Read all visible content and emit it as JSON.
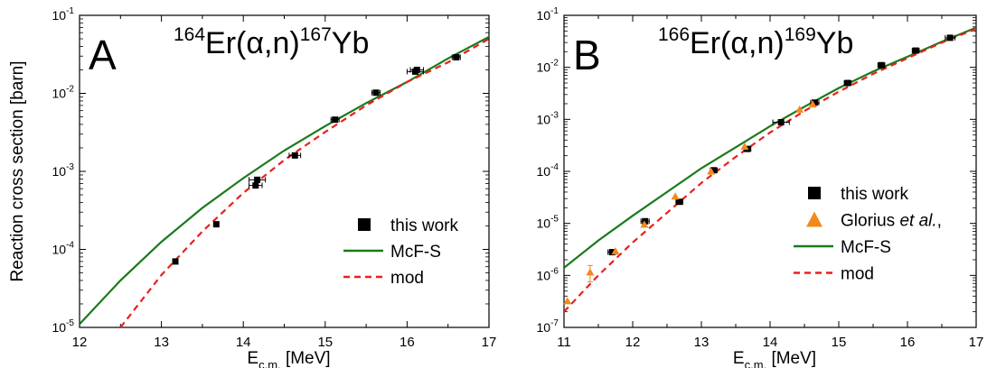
{
  "figure": {
    "ylabel": "Reaction cross section [barn]"
  },
  "chart_data": [
    {
      "type": "scatter",
      "panel_letter": "A",
      "reaction": {
        "target_mass": "164",
        "target": "Er",
        "projectile": "α",
        "ejectile": "n",
        "product_mass": "167",
        "product": "Yb"
      },
      "xlabel_main": "E",
      "xlabel_sub": "c.m.",
      "xlabel_unit": "[MeV]",
      "xlim": [
        12,
        17
      ],
      "ylim": [
        1e-05,
        0.1
      ],
      "yscale": "log",
      "xticks": [
        "12",
        "13",
        "14",
        "15",
        "16",
        "17"
      ],
      "yticks": [
        {
          "base": "10",
          "exp": "-5",
          "value": 1e-05
        },
        {
          "base": "10",
          "exp": "-4",
          "value": 0.0001
        },
        {
          "base": "10",
          "exp": "-3",
          "value": 0.001
        },
        {
          "base": "10",
          "exp": "-2",
          "value": 0.01
        },
        {
          "base": "10",
          "exp": "-1",
          "value": 0.1
        }
      ],
      "legend_position": "bottom-right",
      "series": [
        {
          "name": "this work",
          "kind": "points",
          "marker": "square",
          "color": "#000000",
          "x": [
            13.17,
            13.67,
            14.15,
            14.17,
            14.63,
            15.12,
            15.62,
            16.1,
            16.12,
            16.6
          ],
          "y": [
            7e-05,
            0.00021,
            0.00066,
            0.00078,
            0.0016,
            0.0046,
            0.0102,
            0.019,
            0.02,
            0.029
          ],
          "xerr": [
            0.03,
            0.03,
            0.08,
            0.1,
            0.07,
            0.05,
            0.05,
            0.1,
            0.08,
            0.05
          ]
        },
        {
          "name": "McF-S",
          "kind": "line",
          "style": "solid",
          "color": "#1a7a1a",
          "x": [
            12.0,
            12.5,
            13.0,
            13.5,
            14.0,
            14.5,
            15.0,
            15.5,
            16.0,
            16.5,
            17.0
          ],
          "y": [
            1.1e-05,
            4e-05,
            0.000125,
            0.00034,
            0.00082,
            0.00185,
            0.0038,
            0.0075,
            0.014,
            0.028,
            0.053
          ]
        },
        {
          "name": "mod",
          "kind": "line",
          "style": "dashed",
          "color": "#e8201e",
          "x": [
            12.5,
            13.0,
            13.5,
            14.0,
            14.5,
            15.0,
            15.5,
            16.0,
            16.5,
            17.0
          ],
          "y": [
            1e-05,
            4.7e-05,
            0.00017,
            0.00053,
            0.0014,
            0.0032,
            0.007,
            0.014,
            0.025,
            0.05
          ]
        }
      ]
    },
    {
      "type": "scatter",
      "panel_letter": "B",
      "reaction": {
        "target_mass": "166",
        "target": "Er",
        "projectile": "α",
        "ejectile": "n",
        "product_mass": "169",
        "product": "Yb"
      },
      "xlabel_main": "E",
      "xlabel_sub": "c.m.",
      "xlabel_unit": "[MeV]",
      "xlim": [
        11,
        17
      ],
      "ylim": [
        1e-07,
        0.1
      ],
      "yscale": "log",
      "xticks": [
        "11",
        "12",
        "13",
        "14",
        "15",
        "16",
        "17"
      ],
      "yticks": [
        {
          "base": "10",
          "exp": "-7",
          "value": 1e-07
        },
        {
          "base": "10",
          "exp": "-6",
          "value": 1e-06
        },
        {
          "base": "10",
          "exp": "-5",
          "value": 1e-05
        },
        {
          "base": "10",
          "exp": "-4",
          "value": 0.0001
        },
        {
          "base": "10",
          "exp": "-3",
          "value": 0.001
        },
        {
          "base": "10",
          "exp": "-2",
          "value": 0.01
        },
        {
          "base": "10",
          "exp": "-1",
          "value": 0.1
        }
      ],
      "legend_position": "right",
      "series": [
        {
          "name": "this work",
          "kind": "points",
          "marker": "square",
          "color": "#000000",
          "x": [
            11.7,
            12.18,
            12.68,
            13.18,
            13.67,
            14.16,
            14.65,
            15.13,
            15.62,
            16.12,
            16.62
          ],
          "y": [
            2.8e-06,
            1.1e-05,
            2.6e-05,
            0.000105,
            0.00027,
            0.00088,
            0.0021,
            0.005,
            0.011,
            0.021,
            0.037
          ],
          "xerr": [
            0.06,
            0.06,
            0.05,
            0.05,
            0.05,
            0.12,
            0.06,
            0.05,
            0.05,
            0.05,
            0.07
          ]
        },
        {
          "name": "Glorius et al.,",
          "kind": "points",
          "marker": "triangle",
          "color": "#f08a1c",
          "x": [
            11.05,
            11.38,
            11.75,
            12.17,
            12.62,
            13.14,
            13.63,
            14.43,
            14.62
          ],
          "y": [
            3.2e-07,
            1.15e-06,
            2.9e-06,
            9.5e-06,
            3.3e-05,
            0.0001,
            0.0003,
            0.00155,
            0.00195
          ],
          "yerr": [
            0.0,
            4e-07,
            0.0,
            0.0,
            0.0,
            0.0,
            0.0,
            0.0,
            0.0
          ]
        },
        {
          "name": "McF-S",
          "kind": "line",
          "style": "solid",
          "color": "#1a7a1a",
          "x": [
            11.0,
            11.5,
            12.0,
            12.5,
            13.0,
            13.5,
            14.0,
            14.5,
            15.0,
            15.5,
            16.0,
            16.5,
            17.0
          ],
          "y": [
            1.4e-06,
            4.7e-06,
            1.4e-05,
            4e-05,
            0.000115,
            0.00029,
            0.00074,
            0.00175,
            0.004,
            0.0083,
            0.016,
            0.031,
            0.058
          ]
        },
        {
          "name": "mod",
          "kind": "line",
          "style": "dashed",
          "color": "#e8201e",
          "x": [
            11.0,
            11.5,
            12.0,
            12.5,
            13.0,
            13.5,
            14.0,
            14.5,
            15.0,
            15.5,
            16.0,
            16.5,
            17.0
          ],
          "y": [
            2e-07,
            1e-06,
            4.3e-06,
            1.6e-05,
            6e-05,
            0.00019,
            0.00056,
            0.00145,
            0.0034,
            0.0075,
            0.015,
            0.03,
            0.055
          ]
        }
      ],
      "legend_glorius": {
        "name": "Glorius",
        "italic": "et al.",
        "trail": ","
      }
    }
  ]
}
